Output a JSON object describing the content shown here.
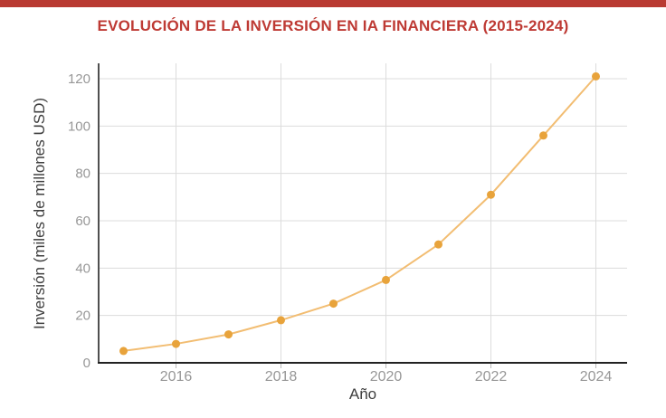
{
  "page": {
    "accent_bar_color": "#b93a32",
    "background_color": "#ffffff"
  },
  "header": {
    "title": "EVOLUCIÓN DE LA INVERSIÓN EN IA FINANCIERA (2015-2024)",
    "title_color": "#be3a34"
  },
  "chart_data": {
    "type": "line",
    "title": "EVOLUCIÓN DE LA INVERSIÓN EN IA FINANCIERA (2015-2024)",
    "xlabel": "Año",
    "ylabel": "Inversión (miles de millones USD)",
    "x": [
      2015,
      2016,
      2017,
      2018,
      2019,
      2020,
      2021,
      2022,
      2023,
      2024
    ],
    "series": [
      {
        "name": "Inversión en IA financiera",
        "values": [
          5,
          8,
          12,
          18,
          25,
          35,
          50,
          71,
          96,
          121
        ]
      }
    ],
    "x_ticks": [
      2016,
      2018,
      2020,
      2022,
      2024
    ],
    "y_ticks": [
      0,
      20,
      40,
      60,
      80,
      100,
      120
    ],
    "xlim": [
      2014.5,
      2024.6
    ],
    "ylim": [
      0,
      126
    ],
    "grid": true,
    "legend": false,
    "line_color": "#f2bd72",
    "marker_color": "#e8a33b",
    "grid_color": "#dcdcdc",
    "y_axis_color": "#4f4f4f",
    "x_axis_color": "#222222",
    "tick_label_color": "#979797",
    "axis_title_color": "#3f3f3f"
  }
}
